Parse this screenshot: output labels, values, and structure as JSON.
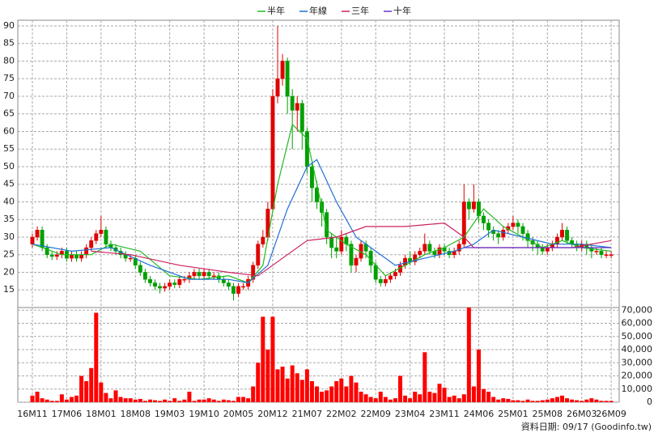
{
  "chart_data": [
    {
      "type": "candlestick",
      "up_color": "#e00000",
      "down_color": "#00a000",
      "ylim": [
        10,
        91.6
      ],
      "yticks": [
        15,
        20,
        25,
        30,
        35,
        40,
        45,
        50,
        55,
        60,
        65,
        70,
        75,
        80,
        85,
        90
      ],
      "grid": true,
      "xticks": [
        {
          "value": 0,
          "label": "16M11"
        },
        {
          "value": 7,
          "label": "17M06"
        },
        {
          "value": 14,
          "label": "18M01"
        },
        {
          "value": 21,
          "label": "18M08"
        },
        {
          "value": 28,
          "label": "19M03"
        },
        {
          "value": 35,
          "label": "19M10"
        },
        {
          "value": 42,
          "label": "20M05"
        },
        {
          "value": 49,
          "label": "20M12"
        },
        {
          "value": 56,
          "label": "21M07"
        },
        {
          "value": 63,
          "label": "22M02"
        },
        {
          "value": 70,
          "label": "22M09"
        },
        {
          "value": 77,
          "label": "23M04"
        },
        {
          "value": 84,
          "label": "23M11"
        },
        {
          "value": 91,
          "label": "24M06"
        },
        {
          "value": 98,
          "label": "25M01"
        },
        {
          "value": 105,
          "label": "25M08"
        },
        {
          "value": 112,
          "label": "26M03"
        },
        {
          "value": 118,
          "label": "26M09"
        }
      ],
      "open": [
        28,
        30,
        32,
        27,
        25,
        24.5,
        25,
        26,
        24,
        25,
        24,
        25,
        27,
        29,
        31,
        32,
        28,
        27,
        26,
        25,
        24,
        24,
        22,
        20,
        18,
        17,
        16,
        15.5,
        16,
        17,
        16.5,
        18,
        18,
        19,
        20,
        19,
        20,
        19,
        19,
        18,
        17,
        16,
        14,
        16,
        16,
        18,
        22,
        28,
        30,
        38,
        70,
        75,
        80,
        70,
        66,
        68,
        60,
        50,
        44,
        40,
        37,
        30,
        27,
        26,
        30,
        28,
        22,
        24,
        28,
        26,
        22,
        18,
        17,
        18,
        19,
        20,
        22,
        24,
        23,
        25,
        26,
        28,
        26,
        25,
        27,
        26,
        25,
        26,
        28,
        40,
        38,
        40,
        36,
        34,
        32,
        31,
        30,
        32,
        33,
        34,
        33,
        31,
        29,
        28,
        27,
        26,
        27,
        28,
        30,
        32,
        29,
        28,
        27,
        28,
        27,
        26,
        26,
        25,
        25
      ],
      "high": [
        31,
        33,
        33,
        28,
        26,
        26,
        27,
        27,
        26,
        26,
        26,
        28,
        30,
        32,
        36,
        33,
        29,
        28,
        27,
        26,
        25,
        25,
        23,
        21,
        19,
        18,
        17,
        17,
        18,
        18,
        19,
        19,
        20,
        21,
        21,
        21,
        21,
        20,
        20,
        19,
        18,
        17,
        17,
        17,
        19,
        23,
        29,
        32,
        40,
        72,
        90,
        82,
        81,
        72,
        70,
        69,
        61,
        51,
        46,
        41,
        38,
        31,
        30,
        32,
        31,
        29,
        25,
        29,
        29,
        27,
        23,
        19,
        19,
        20,
        21,
        23,
        25,
        26,
        26,
        27,
        31,
        29,
        27,
        28,
        28,
        27,
        27,
        29,
        45,
        41,
        45,
        41,
        37,
        35,
        33,
        32,
        33,
        34,
        36,
        35,
        34,
        32,
        30,
        29,
        28,
        28,
        29,
        31,
        34,
        33,
        30,
        29,
        29,
        29,
        28,
        27,
        27,
        26,
        26
      ],
      "low": [
        27,
        29,
        26,
        24,
        23.5,
        23.5,
        24,
        23,
        23,
        23,
        23,
        24,
        26,
        28,
        30,
        27,
        26,
        25,
        24,
        23,
        23,
        21,
        19,
        17,
        16,
        15,
        14,
        14.5,
        15,
        15.5,
        15.5,
        17,
        17,
        18,
        18,
        18,
        18,
        18,
        17,
        16,
        15,
        12,
        13,
        15,
        15,
        17,
        21,
        27,
        29,
        37,
        68,
        73,
        65,
        55,
        60,
        55,
        48,
        40,
        38,
        33,
        28,
        24,
        24,
        25,
        26,
        20,
        20,
        23,
        24,
        20,
        17,
        16,
        16,
        17,
        18,
        19,
        21,
        22,
        22,
        24,
        25,
        25,
        24,
        24,
        25,
        24,
        24,
        25,
        27,
        35,
        37,
        34,
        32,
        30,
        29,
        28,
        29,
        31,
        32,
        31,
        29,
        27,
        26,
        25,
        25,
        25,
        26,
        27,
        29,
        28,
        27,
        26,
        26,
        25,
        24,
        25,
        24,
        24,
        24
      ],
      "close": [
        30,
        32,
        27,
        25,
        24.5,
        25,
        26,
        24,
        25,
        24,
        25,
        27,
        29,
        31,
        32,
        28,
        27,
        26,
        25,
        24,
        24,
        22,
        20,
        18,
        17,
        16,
        15.5,
        16,
        17,
        16.5,
        18,
        18,
        19,
        20,
        19,
        20,
        19,
        19,
        18,
        17,
        16,
        14,
        16,
        16,
        18,
        22,
        28,
        30,
        38,
        70,
        75,
        80,
        70,
        66,
        68,
        60,
        50,
        44,
        40,
        37,
        30,
        27,
        26,
        30,
        28,
        22,
        24,
        28,
        26,
        22,
        18,
        17,
        18,
        19,
        20,
        22,
        24,
        23,
        25,
        26,
        28,
        26,
        25,
        27,
        26,
        25,
        26,
        28,
        40,
        38,
        40,
        36,
        34,
        32,
        31,
        30,
        32,
        33,
        34,
        33,
        31,
        29,
        28,
        27,
        26,
        27,
        28,
        30,
        32,
        29,
        28,
        27,
        28,
        27,
        26,
        26,
        25,
        25,
        25
      ],
      "series": [
        {
          "name": "半年",
          "color": "#22bb22",
          "x": [
            0,
            6,
            12,
            16,
            22,
            28,
            34,
            40,
            44,
            47,
            50,
            53,
            56,
            60,
            64,
            68,
            72,
            76,
            80,
            84,
            88,
            92,
            96,
            100,
            104,
            108,
            112,
            118
          ],
          "values": [
            28,
            25,
            25,
            28,
            26,
            19,
            18,
            19,
            17,
            22,
            45,
            62,
            58,
            32,
            28,
            25,
            19,
            22,
            25,
            27,
            30,
            38,
            33,
            30,
            27,
            29,
            27,
            26
          ]
        },
        {
          "name": "年線",
          "color": "#1f6fd6",
          "x": [
            0,
            8,
            16,
            24,
            32,
            40,
            44,
            48,
            52,
            56,
            58,
            62,
            66,
            70,
            74,
            80,
            86,
            90,
            94,
            100,
            106,
            112,
            118
          ],
          "values": [
            28,
            26,
            27,
            22,
            18,
            18,
            17,
            22,
            38,
            50,
            52,
            40,
            30,
            26,
            22,
            24,
            26,
            28,
            32,
            30,
            28,
            28,
            27
          ]
        },
        {
          "name": "三年",
          "color": "#cc2060",
          "x": [
            12,
            20,
            30,
            40,
            46,
            52,
            56,
            62,
            68,
            76,
            84,
            88,
            90,
            100,
            110,
            118
          ],
          "values": [
            26,
            25,
            22,
            20,
            19,
            25,
            29,
            30,
            33,
            33,
            34,
            30,
            27,
            27,
            27,
            29
          ]
        },
        {
          "name": "十年",
          "color": "#6633cc",
          "x": [
            88,
            100,
            118
          ],
          "values": [
            27,
            27,
            27
          ]
        }
      ]
    },
    {
      "type": "bar",
      "color": "#ff0000",
      "ylim": [
        0,
        72000
      ],
      "yticks": [
        0,
        {
          "value": 10000,
          "label": "10,000"
        },
        {
          "value": 20000,
          "label": "20,000"
        },
        {
          "value": 30000,
          "label": "30,000"
        },
        {
          "value": 40000,
          "label": "40,000"
        },
        {
          "value": 50000,
          "label": "50,000"
        },
        {
          "value": 60000,
          "label": "60,000"
        },
        {
          "value": 70000,
          "label": "70,000"
        }
      ],
      "values": [
        5000,
        8000,
        3000,
        2000,
        1000,
        1000,
        6000,
        2000,
        4000,
        5000,
        20000,
        16000,
        26000,
        68000,
        15000,
        7000,
        3000,
        9000,
        4000,
        3000,
        3000,
        2000,
        2500,
        1000,
        2000,
        1500,
        1000,
        2000,
        1000,
        3000,
        1000,
        2000,
        8000,
        1000,
        2000,
        2000,
        3000,
        2000,
        1000,
        2000,
        1500,
        1000,
        4000,
        4000,
        3000,
        12000,
        30000,
        65000,
        40000,
        65000,
        25000,
        27000,
        18000,
        28000,
        22000,
        17000,
        25000,
        16000,
        12000,
        8000,
        9000,
        12000,
        16000,
        18000,
        12000,
        20000,
        15000,
        8000,
        6000,
        4000,
        3000,
        8000,
        4000,
        2000,
        3000,
        20000,
        5000,
        3000,
        8000,
        6000,
        38000,
        8000,
        7000,
        14000,
        11000,
        4000,
        5000,
        3000,
        6000,
        72000,
        12000,
        40000,
        10000,
        8000,
        4000,
        2000,
        3000,
        2500,
        1500,
        1500,
        1000,
        2000,
        1000,
        1000,
        1500,
        2000,
        3000,
        4000,
        5000,
        3000,
        2000,
        1500,
        1000,
        2000,
        3000,
        2000,
        1000,
        1000,
        1000
      ]
    }
  ],
  "footer": "資料日期: 09/17 (Goodinfo.tw)"
}
